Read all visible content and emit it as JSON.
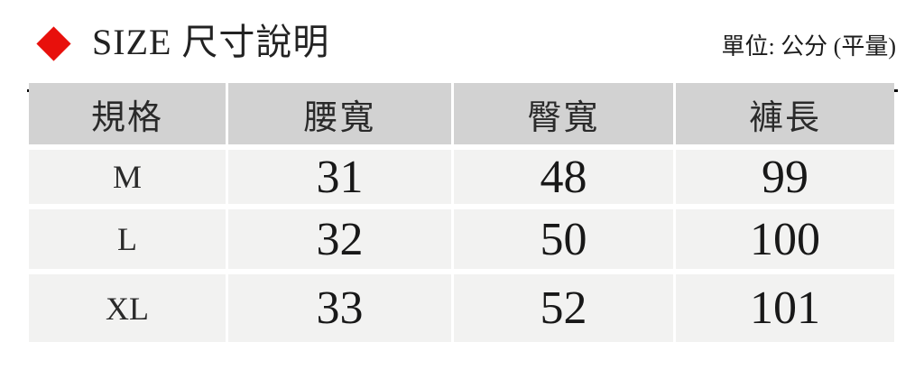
{
  "page": {
    "colors": {
      "accent_red": "#e8100c",
      "underline": "#0a0a0a",
      "header_cell_bg": "#d2d2d2",
      "data_cell_bg": "#f2f2f1"
    }
  },
  "chart_data": {
    "type": "table",
    "title": "SIZE 尺寸說明",
    "unit_note": "單位: 公分 (平量)",
    "columns": [
      "規格",
      "腰寬",
      "臀寬",
      "褲長"
    ],
    "rows": [
      [
        "M",
        "31",
        "48",
        "99"
      ],
      [
        "L",
        "32",
        "50",
        "100"
      ],
      [
        "XL",
        "33",
        "52",
        "101"
      ]
    ]
  }
}
